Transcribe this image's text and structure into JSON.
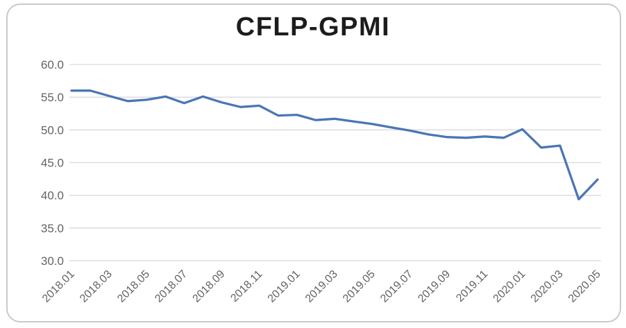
{
  "card": {
    "background": "#ffffff",
    "border_color": "#c9c9c9"
  },
  "chart_data": {
    "type": "line",
    "title": "CFLP-GPMI",
    "x": [
      "2018.01",
      "2018.02",
      "2018.03",
      "2018.04",
      "2018.05",
      "2018.06",
      "2018.07",
      "2018.08",
      "2018.09",
      "2018.10",
      "2018.11",
      "2018.12",
      "2019.01",
      "2019.02",
      "2019.03",
      "2019.04",
      "2019.05",
      "2019.06",
      "2019.07",
      "2019.08",
      "2019.09",
      "2019.10",
      "2019.11",
      "2019.12",
      "2020.01",
      "2020.02",
      "2020.03",
      "2020.04",
      "2020.05"
    ],
    "values": [
      56.0,
      56.0,
      55.2,
      54.4,
      54.6,
      55.1,
      54.1,
      55.1,
      54.2,
      53.5,
      53.7,
      52.2,
      52.3,
      51.5,
      51.7,
      51.3,
      50.9,
      50.4,
      49.9,
      49.3,
      48.9,
      48.8,
      49.0,
      48.8,
      50.1,
      47.3,
      47.6,
      39.4,
      42.4
    ],
    "x_tick_every": 2,
    "y_tick_values": [
      60,
      55,
      50,
      45,
      40,
      35,
      30
    ],
    "y_tick_labels": [
      "60.0",
      "55.0",
      "50.0",
      "45.0",
      "40.0",
      "35.0",
      "30.0"
    ],
    "ylim": [
      30,
      60
    ],
    "xlabel": "",
    "ylabel": "",
    "grid": true,
    "legend_position": "none",
    "line_color": "#4a76b4",
    "gridline_color": "#dadada",
    "axis_label_color": "#636363",
    "title_color": "#1c1c1c"
  }
}
